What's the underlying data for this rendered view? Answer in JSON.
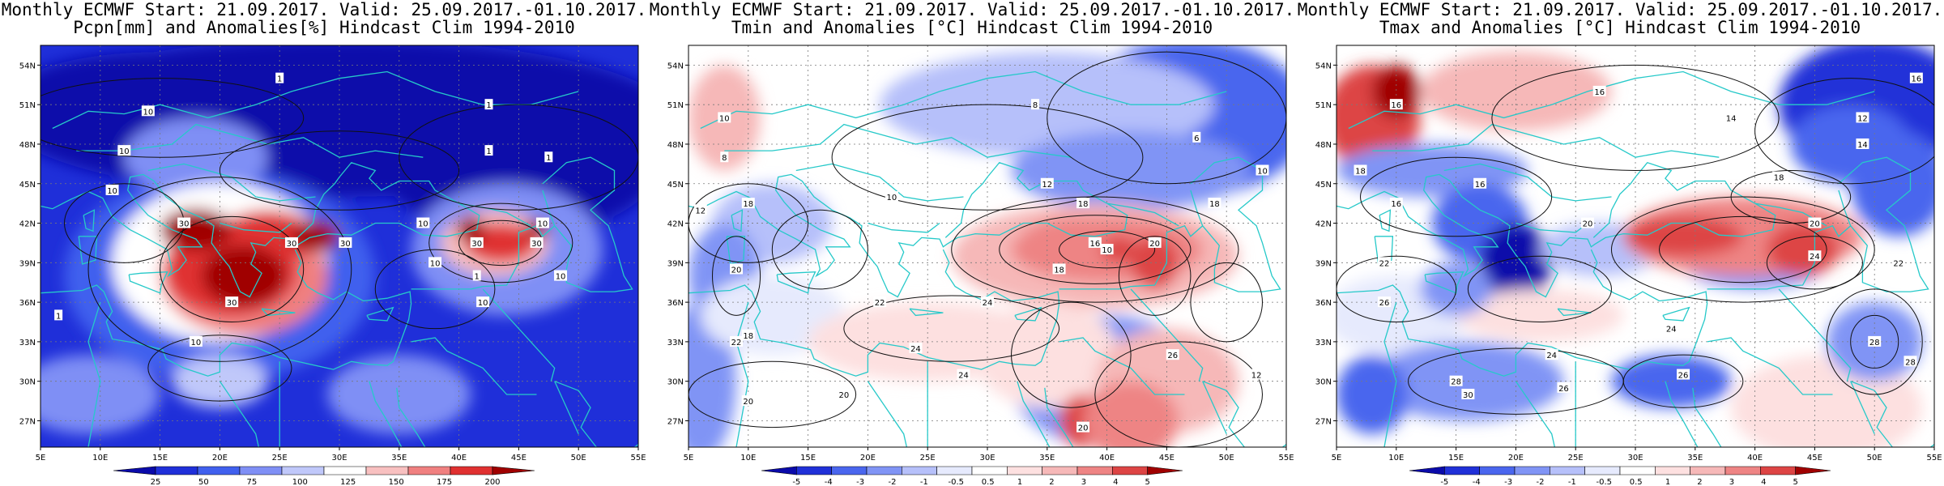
{
  "panels": [
    {
      "id": "pcpn",
      "title_line1": "Monthly ECMWF Start: 21.09.2017. Valid: 25.09.2017.-01.10.2017.",
      "title_line2": "Pcpn[mm] and Anomalies[%] Hindcast Clim 1994-2010",
      "palette": [
        "#0a0aaa",
        "#1f2fd9",
        "#4060ee",
        "#7f8ff5",
        "#c0c8fa",
        "#ffffff",
        "#f8c0c0",
        "#f08080",
        "#e03030",
        "#a00000"
      ],
      "colorbar_ticks": [
        "25",
        "50",
        "75",
        "100",
        "125",
        "150",
        "175",
        "200"
      ],
      "background_level": 1,
      "contour_labels": [
        {
          "text": "10",
          "lon": 14,
          "lat": 50.5
        },
        {
          "text": "1",
          "lon": 25,
          "lat": 53
        },
        {
          "text": "10",
          "lon": 12,
          "lat": 47.5
        },
        {
          "text": "1",
          "lon": 42.5,
          "lat": 51
        },
        {
          "text": "1",
          "lon": 42.5,
          "lat": 47.5
        },
        {
          "text": "1",
          "lon": 47.5,
          "lat": 47
        },
        {
          "text": "10",
          "lon": 11,
          "lat": 44.5
        },
        {
          "text": "30",
          "lon": 17,
          "lat": 42
        },
        {
          "text": "30",
          "lon": 26,
          "lat": 40.5
        },
        {
          "text": "30",
          "lon": 30.5,
          "lat": 40.5
        },
        {
          "text": "30",
          "lon": 21,
          "lat": 36
        },
        {
          "text": "10",
          "lon": 18,
          "lat": 33
        },
        {
          "text": "10",
          "lon": 37,
          "lat": 42
        },
        {
          "text": "10",
          "lon": 47,
          "lat": 42
        },
        {
          "text": "30",
          "lon": 41.5,
          "lat": 40.5
        },
        {
          "text": "30",
          "lon": 46.5,
          "lat": 40.5
        },
        {
          "text": "10",
          "lon": 38,
          "lat": 39
        },
        {
          "text": "10",
          "lon": 42,
          "lat": 36
        },
        {
          "text": "1",
          "lon": 6.5,
          "lat": 35
        },
        {
          "text": "1",
          "lon": 41.5,
          "lat": 38
        },
        {
          "text": "10",
          "lon": 48.5,
          "lat": 38
        }
      ]
    },
    {
      "id": "tmin",
      "title_line1": "Monthly ECMWF Start: 21.09.2017. Valid: 25.09.2017.-01.10.2017.",
      "title_line2": "Tmin and Anomalies [°C] Hindcast Clim 1994-2010",
      "palette": [
        "#0a0aaa",
        "#2030d8",
        "#4a66ee",
        "#8094f5",
        "#b6c0fa",
        "#e6eafd",
        "#ffffff",
        "#fde0e0",
        "#f6b8b8",
        "#ee8484",
        "#dd4444",
        "#a00000"
      ],
      "colorbar_ticks": [
        "-5",
        "-4",
        "-3",
        "-2",
        "-1",
        "-0.5",
        "0.5",
        "1",
        "2",
        "3",
        "4",
        "5"
      ],
      "background_level": 6,
      "contour_labels": [
        {
          "text": "10",
          "lon": 8,
          "lat": 50
        },
        {
          "text": "8",
          "lon": 34,
          "lat": 51
        },
        {
          "text": "6",
          "lon": 47.5,
          "lat": 48.5
        },
        {
          "text": "8",
          "lon": 8,
          "lat": 47
        },
        {
          "text": "10",
          "lon": 53,
          "lat": 46
        },
        {
          "text": "12",
          "lon": 6,
          "lat": 43
        },
        {
          "text": "18",
          "lon": 10,
          "lat": 43.5
        },
        {
          "text": "10",
          "lon": 22,
          "lat": 44
        },
        {
          "text": "12",
          "lon": 35,
          "lat": 45
        },
        {
          "text": "18",
          "lon": 38,
          "lat": 43.5
        },
        {
          "text": "18",
          "lon": 49,
          "lat": 43.5
        },
        {
          "text": "10",
          "lon": 40,
          "lat": 40
        },
        {
          "text": "16",
          "lon": 39,
          "lat": 40.5
        },
        {
          "text": "20",
          "lon": 44,
          "lat": 40.5
        },
        {
          "text": "18",
          "lon": 36,
          "lat": 38.5
        },
        {
          "text": "20",
          "lon": 9,
          "lat": 38.5
        },
        {
          "text": "22",
          "lon": 21,
          "lat": 36
        },
        {
          "text": "24",
          "lon": 30,
          "lat": 36
        },
        {
          "text": "18",
          "lon": 10,
          "lat": 33.5
        },
        {
          "text": "22",
          "lon": 9,
          "lat": 33
        },
        {
          "text": "24",
          "lon": 24,
          "lat": 32.5
        },
        {
          "text": "26",
          "lon": 45.5,
          "lat": 32
        },
        {
          "text": "24",
          "lon": 28,
          "lat": 30.5
        },
        {
          "text": "20",
          "lon": 18,
          "lat": 29
        },
        {
          "text": "20",
          "lon": 10,
          "lat": 28.5
        },
        {
          "text": "12",
          "lon": 52.5,
          "lat": 30.5
        },
        {
          "text": "20",
          "lon": 38,
          "lat": 26.5
        }
      ]
    },
    {
      "id": "tmax",
      "title_line1": "Monthly ECMWF Start: 21.09.2017. Valid: 25.09.2017.-01.10.2017.",
      "title_line2": "Tmax and Anomalies [°C] Hindcast Clim 1994-2010",
      "palette": [
        "#0a0aaa",
        "#2030d8",
        "#4a66ee",
        "#8094f5",
        "#b6c0fa",
        "#e6eafd",
        "#ffffff",
        "#fde0e0",
        "#f6b8b8",
        "#ee8484",
        "#dd4444",
        "#a00000"
      ],
      "colorbar_ticks": [
        "-5",
        "-4",
        "-3",
        "-2",
        "-1",
        "-0.5",
        "0.5",
        "1",
        "2",
        "3",
        "4",
        "5"
      ],
      "background_level": 6,
      "contour_labels": [
        {
          "text": "16",
          "lon": 10,
          "lat": 51
        },
        {
          "text": "16",
          "lon": 27,
          "lat": 52
        },
        {
          "text": "16",
          "lon": 53.5,
          "lat": 53
        },
        {
          "text": "14",
          "lon": 38,
          "lat": 50
        },
        {
          "text": "12",
          "lon": 49,
          "lat": 50
        },
        {
          "text": "14",
          "lon": 49,
          "lat": 48
        },
        {
          "text": "18",
          "lon": 7,
          "lat": 46
        },
        {
          "text": "16",
          "lon": 17,
          "lat": 45
        },
        {
          "text": "18",
          "lon": 42,
          "lat": 45.5
        },
        {
          "text": "16",
          "lon": 10,
          "lat": 43.5
        },
        {
          "text": "20",
          "lon": 26,
          "lat": 42
        },
        {
          "text": "20",
          "lon": 45,
          "lat": 42
        },
        {
          "text": "22",
          "lon": 9,
          "lat": 39
        },
        {
          "text": "24",
          "lon": 45,
          "lat": 39.5
        },
        {
          "text": "22",
          "lon": 52,
          "lat": 39
        },
        {
          "text": "26",
          "lon": 9,
          "lat": 36
        },
        {
          "text": "24",
          "lon": 33,
          "lat": 34
        },
        {
          "text": "24",
          "lon": 23,
          "lat": 32
        },
        {
          "text": "28",
          "lon": 50,
          "lat": 33
        },
        {
          "text": "28",
          "lon": 15,
          "lat": 30
        },
        {
          "text": "30",
          "lon": 16,
          "lat": 29
        },
        {
          "text": "26",
          "lon": 34,
          "lat": 30.5
        },
        {
          "text": "26",
          "lon": 24,
          "lat": 29.5
        },
        {
          "text": "28",
          "lon": 53,
          "lat": 31.5
        }
      ]
    }
  ],
  "map": {
    "lon_ticks": [
      "5E",
      "10E",
      "15E",
      "20E",
      "25E",
      "30E",
      "35E",
      "40E",
      "45E",
      "50E",
      "55E"
    ],
    "lat_ticks": [
      "54N",
      "51N",
      "48N",
      "45N",
      "42N",
      "39N",
      "36N",
      "33N",
      "30N",
      "27N"
    ]
  }
}
